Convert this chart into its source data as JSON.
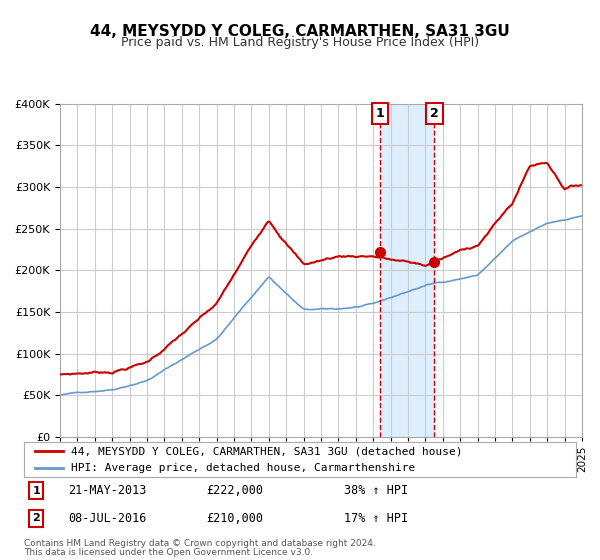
{
  "title": "44, MEYSYDD Y COLEG, CARMARTHEN, SA31 3GU",
  "subtitle": "Price paid vs. HM Land Registry's House Price Index (HPI)",
  "legend_label_red": "44, MEYSYDD Y COLEG, CARMARTHEN, SA31 3GU (detached house)",
  "legend_label_blue": "HPI: Average price, detached house, Carmarthenshire",
  "annotation1_date": "21-MAY-2013",
  "annotation1_price": "£222,000",
  "annotation1_hpi": "38% ↑ HPI",
  "annotation2_date": "08-JUL-2016",
  "annotation2_price": "£210,000",
  "annotation2_hpi": "17% ↑ HPI",
  "footer1": "Contains HM Land Registry data © Crown copyright and database right 2024.",
  "footer2": "This data is licensed under the Open Government Licence v3.0.",
  "red_color": "#cc0000",
  "blue_color": "#6699cc",
  "background_color": "#ffffff",
  "grid_color": "#cccccc",
  "vline1_x": 2013.38,
  "vline2_x": 2016.52,
  "shade_color": "#ddeeff",
  "ylim_min": 0,
  "ylim_max": 400000,
  "xlim_min": 1995,
  "xlim_max": 2025,
  "hpi_key_years": [
    1995,
    1998,
    2000,
    2004,
    2007,
    2009,
    2011,
    2013,
    2016,
    2019,
    2021,
    2023,
    2025
  ],
  "hpi_key_vals": [
    50000,
    58000,
    70000,
    120000,
    195000,
    155000,
    155000,
    160000,
    182000,
    195000,
    235000,
    255000,
    265000
  ],
  "red_key_years": [
    1995,
    1998,
    2000,
    2004,
    2007,
    2009,
    2011,
    2013,
    2016,
    2019,
    2021,
    2022,
    2023,
    2024,
    2025
  ],
  "red_key_vals": [
    75000,
    80000,
    92000,
    160000,
    262000,
    210000,
    220000,
    222000,
    210000,
    235000,
    285000,
    330000,
    335000,
    305000,
    310000
  ]
}
